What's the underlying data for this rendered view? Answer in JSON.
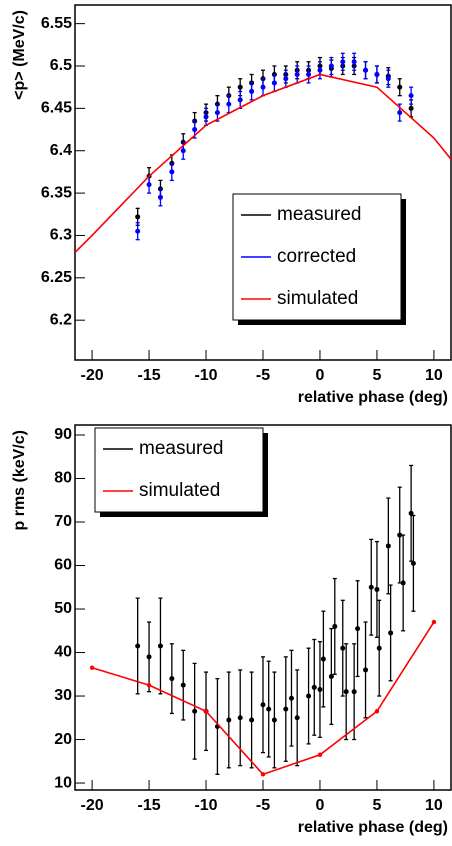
{
  "chart_data": [
    {
      "type": "errorbar",
      "x_label": "relative phase (deg)",
      "y_label": "<p> (MeV/c)",
      "xlim": [
        -21.5,
        11.5
      ],
      "ylim": [
        6.153,
        6.572
      ],
      "xticks": [
        -20,
        -15,
        -10,
        -5,
        0,
        5,
        10
      ],
      "yticks": [
        6.2,
        6.25,
        6.3,
        6.35,
        6.4,
        6.45,
        6.5,
        6.55
      ],
      "legend": "lower right",
      "series": [
        {
          "name": "measured",
          "color": "#000000",
          "style": "points",
          "x": [
            -16,
            -15,
            -14,
            -13,
            -12,
            -11,
            -10,
            -9,
            -8,
            -7,
            -6,
            -5,
            -4,
            -3,
            -2,
            -1,
            0,
            1,
            2,
            3,
            4,
            5,
            6,
            7,
            8
          ],
          "values": [
            6.322,
            6.37,
            6.355,
            6.385,
            6.41,
            6.435,
            6.445,
            6.455,
            6.465,
            6.475,
            6.48,
            6.485,
            6.49,
            6.49,
            6.495,
            6.495,
            6.5,
            6.497,
            6.5,
            6.5,
            6.495,
            6.49,
            6.488,
            6.475,
            6.45
          ],
          "errors": [
            0.01,
            0.01,
            0.01,
            0.01,
            0.01,
            0.01,
            0.01,
            0.01,
            0.01,
            0.01,
            0.01,
            0.01,
            0.01,
            0.01,
            0.01,
            0.01,
            0.01,
            0.01,
            0.01,
            0.01,
            0.01,
            0.01,
            0.01,
            0.01,
            0.01
          ]
        },
        {
          "name": "corrected",
          "color": "#0000ff",
          "style": "points",
          "x": [
            -16,
            -15,
            -14,
            -13,
            -12,
            -11,
            -10,
            -9,
            -8,
            -7,
            -6,
            -5,
            -4,
            -3,
            -2,
            -1,
            0,
            1,
            2,
            3,
            4,
            5,
            6,
            7,
            8
          ],
          "values": [
            6.305,
            6.36,
            6.345,
            6.375,
            6.4,
            6.425,
            6.44,
            6.445,
            6.455,
            6.46,
            6.47,
            6.475,
            6.48,
            6.485,
            6.49,
            6.49,
            6.495,
            6.5,
            6.505,
            6.505,
            6.495,
            6.49,
            6.485,
            6.445,
            6.465
          ],
          "errors": [
            0.01,
            0.01,
            0.01,
            0.01,
            0.01,
            0.01,
            0.01,
            0.01,
            0.01,
            0.01,
            0.01,
            0.01,
            0.01,
            0.01,
            0.01,
            0.01,
            0.01,
            0.01,
            0.01,
            0.01,
            0.01,
            0.01,
            0.01,
            0.01,
            0.01
          ]
        },
        {
          "name": "simulated",
          "color": "#ff0000",
          "style": "line",
          "markers": false,
          "x": [
            -21.5,
            -20,
            -15,
            -10,
            -5,
            0,
            5,
            10,
            11.5
          ],
          "values": [
            6.28,
            6.3,
            6.37,
            6.43,
            6.465,
            6.49,
            6.475,
            6.415,
            6.39
          ]
        }
      ]
    },
    {
      "type": "errorbar",
      "x_label": "relative phase (deg)",
      "y_label": "p rms (keV/c)",
      "xlim": [
        -21.5,
        11.5
      ],
      "ylim": [
        8.4,
        92.3
      ],
      "xticks": [
        -20,
        -15,
        -10,
        -5,
        0,
        5,
        10
      ],
      "yticks": [
        10,
        20,
        30,
        40,
        50,
        60,
        70,
        80,
        90
      ],
      "legend": "upper left",
      "series": [
        {
          "name": "measured",
          "color": "#000000",
          "style": "points",
          "x": [
            -16,
            -15,
            -14,
            -13,
            -12,
            -11,
            -10,
            -9,
            -8,
            -7,
            -6,
            -5,
            -4.5,
            -4,
            -3,
            -2.5,
            -2,
            -1,
            -0.5,
            0,
            0.3,
            1,
            1.3,
            2,
            2.3,
            3,
            3.3,
            4,
            4.5,
            5,
            5.2,
            6,
            6.2,
            7,
            7.3,
            8,
            8.2
          ],
          "values": [
            41.5,
            39,
            41.5,
            34,
            32.5,
            26.5,
            26.5,
            23,
            24.5,
            25,
            24.5,
            28,
            27,
            24.5,
            27,
            29.5,
            25,
            30,
            32,
            31.5,
            38.5,
            34.5,
            46,
            41,
            31,
            31,
            45.5,
            36,
            55,
            54.5,
            41,
            64.5,
            44.5,
            67,
            56,
            72,
            60.5
          ],
          "errors": [
            11,
            8,
            11,
            8,
            8,
            11,
            9,
            11,
            11,
            11,
            11,
            11,
            11,
            11,
            12,
            11,
            11,
            11,
            11,
            11,
            11,
            11,
            11,
            11,
            11,
            11,
            11,
            11,
            11,
            11,
            11,
            11,
            11,
            11,
            11,
            11,
            11
          ]
        },
        {
          "name": "simulated",
          "color": "#ff0000",
          "style": "line",
          "markers": true,
          "x": [
            -20,
            -15,
            -10,
            -5,
            0,
            5,
            10
          ],
          "values": [
            36.5,
            32.5,
            26.5,
            12,
            16.5,
            26.5,
            47
          ]
        }
      ]
    }
  ]
}
